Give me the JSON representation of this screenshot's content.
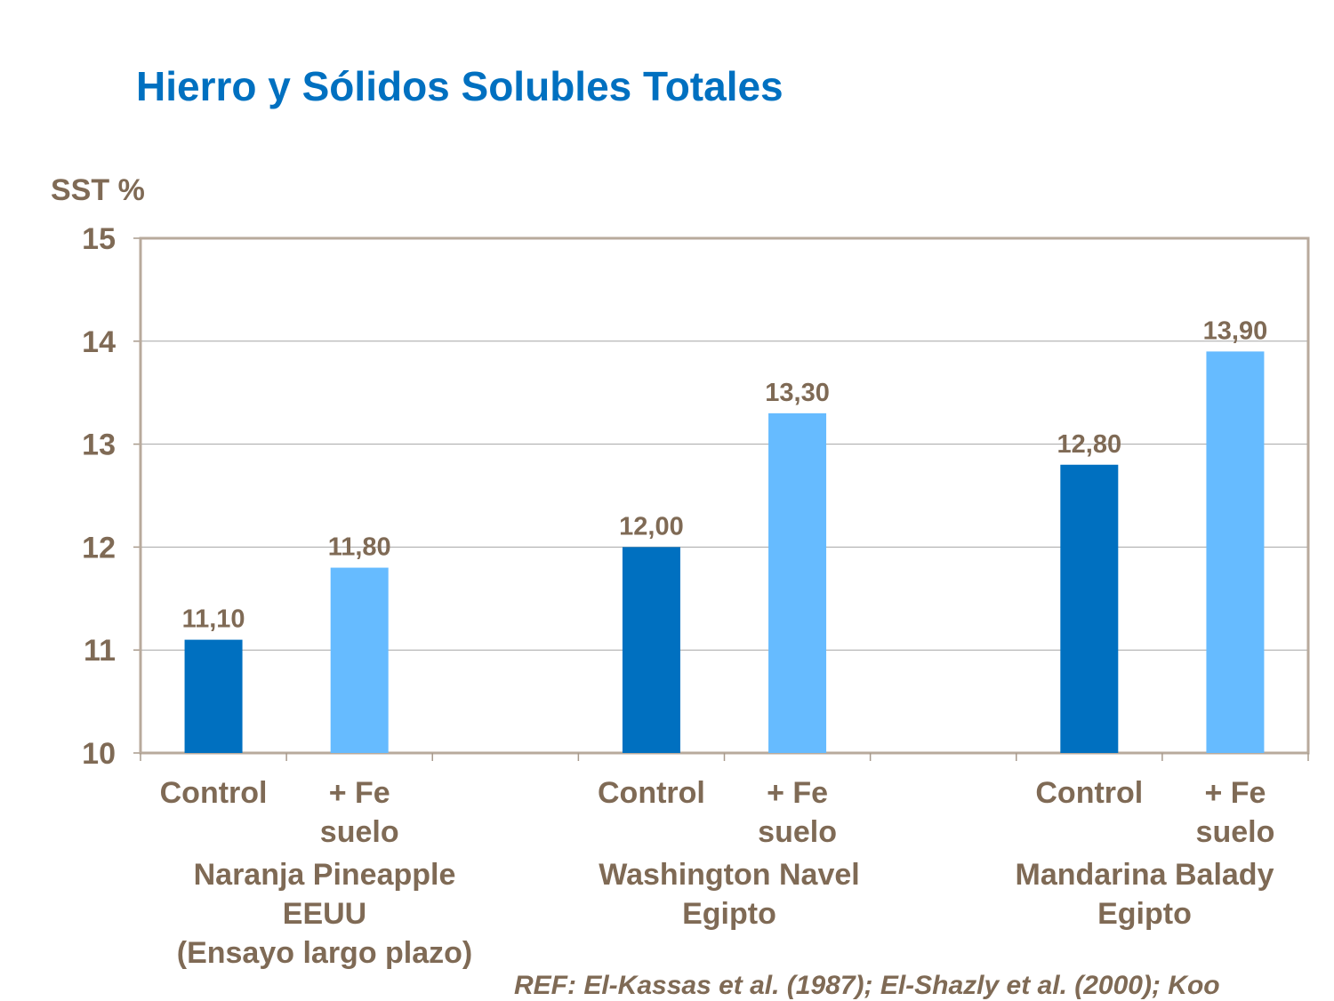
{
  "title": "Hierro y Sólidos Solubles Totales",
  "reference": "REF: El-Kassas et al. (1987); El-Shazly et al. (2000); Koo",
  "chart_data": {
    "type": "bar",
    "title": "Hierro y Sólidos Solubles Totales",
    "ylabel": "SST %",
    "xlabel": "",
    "ylim": [
      10,
      15
    ],
    "yticks": [
      "10",
      "11",
      "12",
      "13",
      "14",
      "15"
    ],
    "grid": true,
    "categories": [
      "Control",
      "+ Fe\nsuelo",
      "",
      "Control",
      "+ Fe\nsuelo",
      "",
      "Control",
      "+ Fe\nsuelo"
    ],
    "values": [
      11.1,
      11.8,
      null,
      12.0,
      13.3,
      null,
      12.8,
      13.9
    ],
    "data_labels": [
      "11,10",
      "11,80",
      "",
      "12,00",
      "13,30",
      "",
      "12,80",
      "13,90"
    ],
    "bar_colors": [
      "#0070c0",
      "#66bbff",
      "",
      "#0070c0",
      "#66bbff",
      "",
      "#0070c0",
      "#66bbff"
    ],
    "groups": [
      {
        "label": "Naranja Pineapple\nEEUU\n(Ensayo largo plazo)"
      },
      {
        "label": "Washington Navel\nEgipto"
      },
      {
        "label": "Mandarina Balady\nEgipto"
      }
    ]
  },
  "colors": {
    "title": "#0070c0",
    "text": "#7f6a55",
    "control": "#0070c0",
    "fe": "#66bbff"
  }
}
